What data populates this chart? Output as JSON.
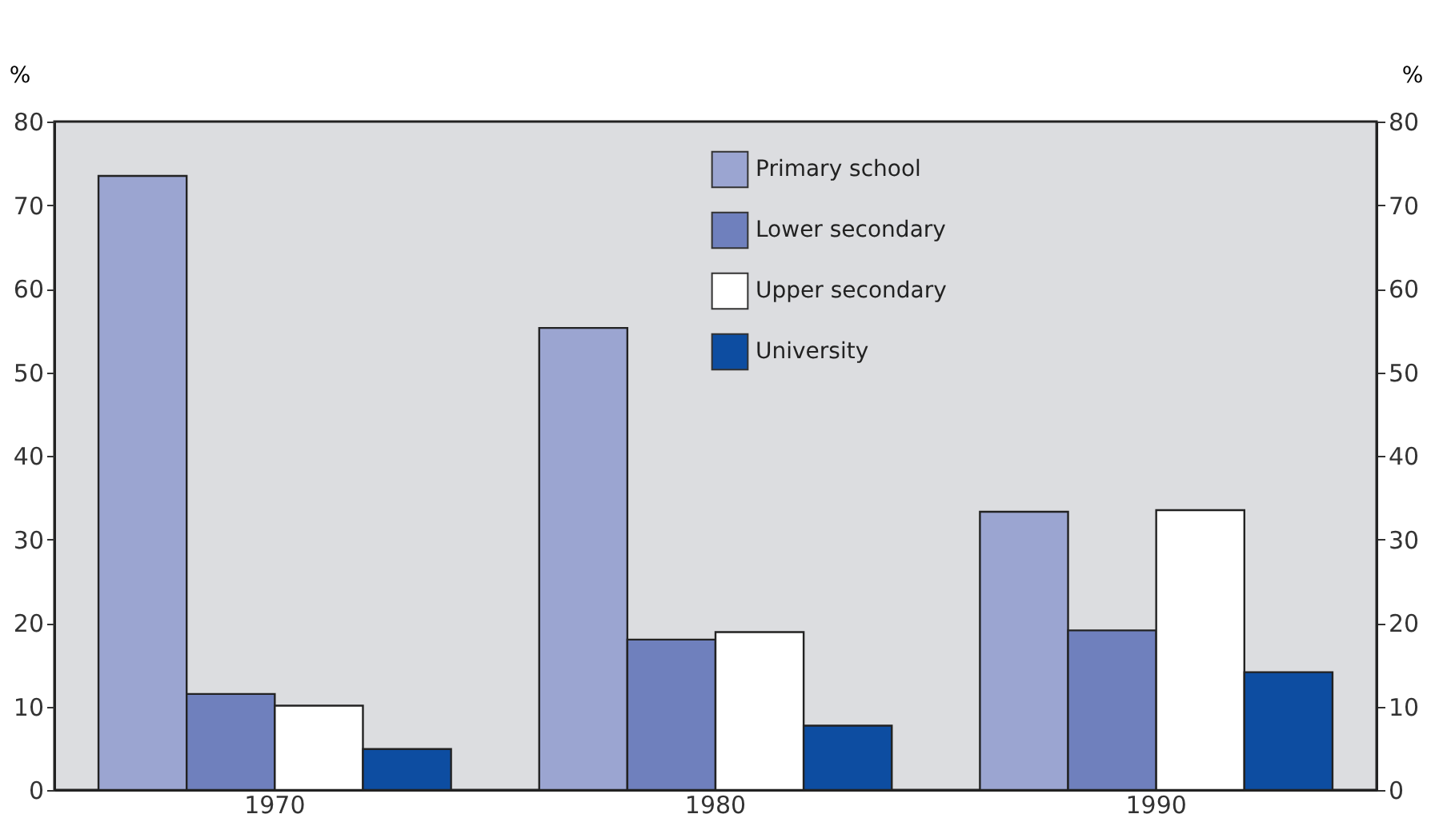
{
  "chart_data": {
    "type": "bar",
    "ylabel": "%",
    "y2label": "%",
    "categories": [
      "1970",
      "1980",
      "1990"
    ],
    "series": [
      {
        "name": "Primary school",
        "color": "#9ba5d1",
        "values": [
          73.5,
          55.3,
          33.3
        ]
      },
      {
        "name": "Lower secondary",
        "color": "#6f80bd",
        "values": [
          11.5,
          18.0,
          19.1
        ]
      },
      {
        "name": "Upper secondary",
        "color": "#ffffff",
        "values": [
          10.1,
          18.9,
          33.5
        ]
      },
      {
        "name": "University",
        "color": "#0d4da1",
        "values": [
          4.9,
          7.7,
          14.1
        ]
      }
    ],
    "ylim": [
      0,
      80
    ],
    "yticks": [
      0,
      10,
      20,
      30,
      40,
      50,
      60,
      70,
      80
    ],
    "y2lim": [
      0,
      80
    ],
    "y2ticks": [
      0,
      10,
      20,
      30,
      40,
      50,
      60,
      70,
      80
    ],
    "grid": false,
    "legend": "top right"
  }
}
